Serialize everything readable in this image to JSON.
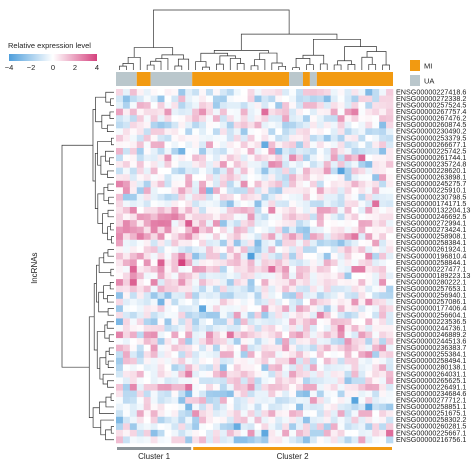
{
  "chart_data": {
    "type": "heatmap",
    "title": "",
    "xlabel": "",
    "ylabel": "lncRNAs",
    "color_scale": {
      "title": "Relative expression level",
      "range": [
        -4,
        4
      ],
      "ticks": [
        "-4",
        "-2",
        "0",
        "2",
        "4"
      ],
      "colors": [
        "#4f9fdc",
        "#ffffff",
        "#d5427e"
      ]
    },
    "group_legend": [
      {
        "name": "MI",
        "color": "#f29a11"
      },
      {
        "name": "UA",
        "color": "#bac7cc"
      }
    ],
    "sample_groups": {
      "counts": [
        3,
        2,
        6,
        14,
        2,
        1,
        1,
        11
      ],
      "labels": [
        "UA",
        "MI",
        "UA",
        "MI",
        "UA",
        "MI",
        "UA",
        "MI"
      ]
    },
    "clusters": [
      {
        "name": "Cluster 1",
        "count": 11,
        "color": "#8c9499"
      },
      {
        "name": "Cluster 2",
        "count": 29,
        "color": "#f29a11"
      }
    ],
    "row_labels": [
      "ENSG00000227418.6",
      "ENSG00000272338.2",
      "ENSG00000257524.5",
      "ENSG00000267757.4",
      "ENSG00000267476.2",
      "ENSG00000260874.5",
      "ENSG00000230490.2",
      "ENSG00000253379.5",
      "ENSG00000266677.1",
      "ENSG00000225742.5",
      "ENSG00000261744.1",
      "ENSG00000235724.8",
      "ENSG00000228620.1",
      "ENSG00000263898.1",
      "ENSG00000245275.7",
      "ENSG00000225910.1",
      "ENSG00000230798.5",
      "ENSG00000174171.5",
      "ENSG00000132204.13",
      "ENSG00000246692.5",
      "ENSG00000272994.1",
      "ENSG00000273424.1",
      "ENSG00000258908.1",
      "ENSG00000258384.1",
      "ENSG00000261924.1",
      "ENSG00000196810.4",
      "ENSG00000258844.1",
      "ENSG00000227477.1",
      "ENSG00000189223.13",
      "ENSG00000280222.1",
      "ENSG00000257653.1",
      "ENSG00000256940.1",
      "ENSG00000257086.1",
      "ENSG00000177406.4",
      "ENSG00000256604.1",
      "ENSG00000223536.5",
      "ENSG00000244736.1",
      "ENSG00000246889.2",
      "ENSG00000244513.6",
      "ENSG00000236383.7",
      "ENSG00000255384.1",
      "ENSG00000258494.1",
      "ENSG00000280138.1",
      "ENSG00000264031.1",
      "ENSG00000265625.1",
      "ENSG00000226491.1",
      "ENSG00000234684.6",
      "ENSG00000277712.1",
      "ENSG00000258851.1",
      "ENSG00000251675.1",
      "ENSG00000258302.2",
      "ENSG00000260281.5",
      "ENSG00000225667.1",
      "ENSG00000216756.1"
    ],
    "num_columns": 40,
    "values": "not legible per cell; approximate random pattern within [-4, 4]"
  }
}
